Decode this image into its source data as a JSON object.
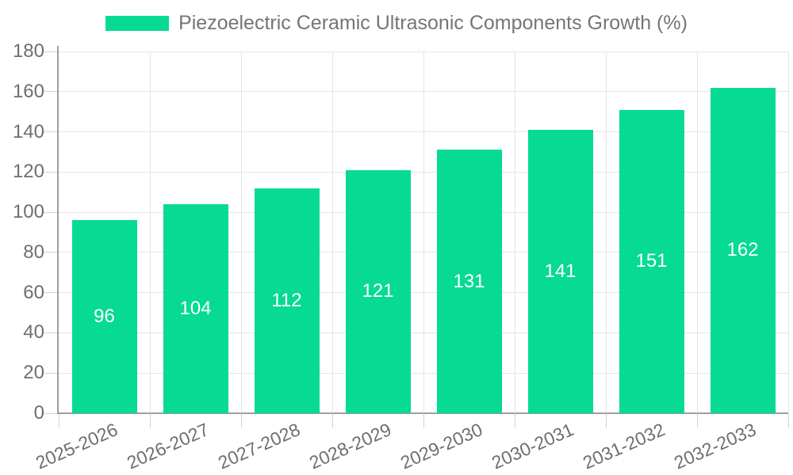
{
  "legend": {
    "label": "Piezoelectric Ceramic Ultrasonic Components Growth (%)"
  },
  "chart_data": {
    "type": "bar",
    "title": "Piezoelectric Ceramic Ultrasonic Components Growth (%)",
    "categories": [
      "2025-2026",
      "2026-2027",
      "2027-2028",
      "2028-2029",
      "2029-2030",
      "2030-2031",
      "2031-2032",
      "2032-2033"
    ],
    "values": [
      96,
      104,
      112,
      121,
      131,
      141,
      151,
      162
    ],
    "value_labels": [
      96,
      104,
      112,
      121,
      131,
      141,
      151,
      162
    ],
    "xlabel": "",
    "ylabel": "",
    "ylim": [
      0,
      180
    ],
    "yticks": [
      0,
      20,
      40,
      60,
      80,
      100,
      120,
      140,
      160,
      180
    ],
    "grid": true,
    "legend_position": "top",
    "value_label_position": "inside-center",
    "x_label_rotation_deg": -24,
    "colors": {
      "bar": "#06da93",
      "value_text": "#ffffff",
      "axis_line": "#9e9e9e",
      "gridline": "#e4e4e4",
      "tick": "#d2d2d2",
      "axis_text": "#6e6e6e",
      "title_text": "#757575",
      "background": "#ffffff"
    }
  }
}
